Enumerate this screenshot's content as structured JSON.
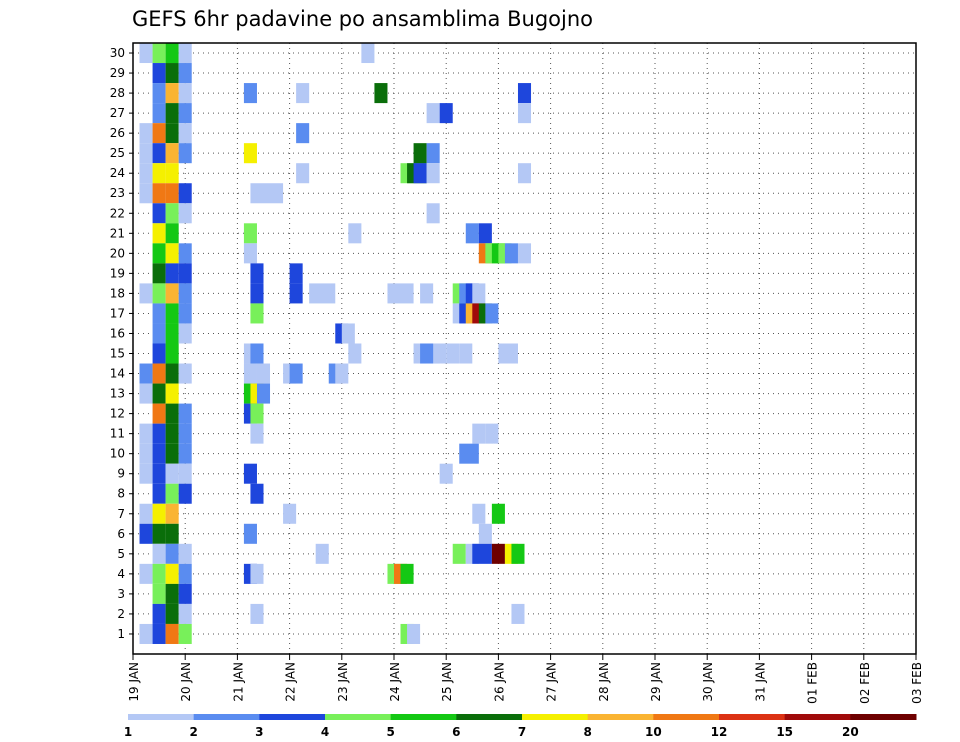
{
  "chart_data": {
    "type": "heatmap",
    "title": "GEFS 6hr padavine po ansamblima Bugojno",
    "members": [
      1,
      2,
      3,
      4,
      5,
      6,
      7,
      8,
      9,
      10,
      11,
      12,
      13,
      14,
      15,
      16,
      17,
      18,
      19,
      20,
      21,
      22,
      23,
      24,
      25,
      26,
      27,
      28,
      29,
      30
    ],
    "x_tick_labels": [
      "19 JAN",
      "20 JAN",
      "21 JAN",
      "22 JAN",
      "23 JAN",
      "24 JAN",
      "25 JAN",
      "26 JAN",
      "27 JAN",
      "28 JAN",
      "29 JAN",
      "30 JAN",
      "31 JAN",
      "01 FEB",
      "02 FEB",
      "03 FEB"
    ],
    "x_unit": "6-hour steps from 19 JAN 00 UTC",
    "colorbar": {
      "labels": [
        "1",
        "2",
        "3",
        "4",
        "5",
        "6",
        "7",
        "8",
        "10",
        "12",
        "15",
        "20"
      ],
      "colors": [
        "#b4c8f5",
        "#5a8cf0",
        "#1e46dc",
        "#78f05a",
        "#14c814",
        "#0a6e0a",
        "#f5f000",
        "#fab432",
        "#f07814",
        "#dc3214",
        "#a00a0a",
        "#6e0000"
      ]
    },
    "cells": [
      {
        "m": 30,
        "x": [
          1
        ],
        "b": 0
      },
      {
        "m": 30,
        "x": [
          2
        ],
        "b": 3
      },
      {
        "m": 30,
        "x": [
          3
        ],
        "b": 4
      },
      {
        "m": 30,
        "x": [
          4
        ],
        "b": 0
      },
      {
        "m": 30,
        "x": [
          18
        ],
        "b": 0
      },
      {
        "m": 29,
        "x": [
          2
        ],
        "b": 2
      },
      {
        "m": 29,
        "x": [
          3
        ],
        "b": 5
      },
      {
        "m": 29,
        "x": [
          4
        ],
        "b": 1
      },
      {
        "m": 28,
        "x": [
          2
        ],
        "b": 1
      },
      {
        "m": 28,
        "x": [
          3
        ],
        "b": 7
      },
      {
        "m": 28,
        "x": [
          4
        ],
        "b": 0
      },
      {
        "m": 28,
        "x": [
          9
        ],
        "b": 1
      },
      {
        "m": 28,
        "x": [
          13
        ],
        "b": 0
      },
      {
        "m": 28,
        "x": [
          19
        ],
        "b": 5
      },
      {
        "m": 28,
        "x": [
          30
        ],
        "b": 2
      },
      {
        "m": 27,
        "x": [
          2
        ],
        "b": 1
      },
      {
        "m": 27,
        "x": [
          3
        ],
        "b": 5
      },
      {
        "m": 27,
        "x": [
          4
        ],
        "b": 1
      },
      {
        "m": 27,
        "x": [
          23
        ],
        "b": 0
      },
      {
        "m": 27,
        "x": [
          24
        ],
        "b": 2
      },
      {
        "m": 27,
        "x": [
          30
        ],
        "b": 0
      },
      {
        "m": 26,
        "x": [
          1
        ],
        "b": 0
      },
      {
        "m": 26,
        "x": [
          2
        ],
        "b": 8
      },
      {
        "m": 26,
        "x": [
          3
        ],
        "b": 5
      },
      {
        "m": 26,
        "x": [
          4
        ],
        "b": 0
      },
      {
        "m": 26,
        "x": [
          13
        ],
        "b": 1
      },
      {
        "m": 25,
        "x": [
          1
        ],
        "b": 0
      },
      {
        "m": 25,
        "x": [
          2
        ],
        "b": 2
      },
      {
        "m": 25,
        "x": [
          3
        ],
        "b": 7
      },
      {
        "m": 25,
        "x": [
          4
        ],
        "b": 1
      },
      {
        "m": 25,
        "x": [
          9
        ],
        "b": 6
      },
      {
        "m": 25,
        "x": [
          22
        ],
        "b": 5
      },
      {
        "m": 25,
        "x": [
          23
        ],
        "b": 1
      },
      {
        "m": 24,
        "x": [
          1
        ],
        "b": 0
      },
      {
        "m": 24,
        "x": [
          2
        ],
        "b": 6
      },
      {
        "m": 24,
        "x": [
          3
        ],
        "b": 6
      },
      {
        "m": 24,
        "x": [
          13
        ],
        "b": 0
      },
      {
        "m": 24,
        "x": [
          21
        ],
        "b": 3
      },
      {
        "m": 24,
        "x": [
          21.5,
          22
        ],
        "b": 5
      },
      {
        "m": 24,
        "x": [
          22
        ],
        "b": 2
      },
      {
        "m": 24,
        "x": [
          23
        ],
        "b": 0
      },
      {
        "m": 24,
        "x": [
          30
        ],
        "b": 0
      },
      {
        "m": 23,
        "x": [
          1
        ],
        "b": 0
      },
      {
        "m": 23,
        "x": [
          2
        ],
        "b": 8
      },
      {
        "m": 23,
        "x": [
          3
        ],
        "b": 8
      },
      {
        "m": 23,
        "x": [
          4
        ],
        "b": 2
      },
      {
        "m": 23,
        "x": [
          9.5,
          11
        ],
        "b": 0
      },
      {
        "m": 22,
        "x": [
          2
        ],
        "b": 2
      },
      {
        "m": 22,
        "x": [
          3
        ],
        "b": 3
      },
      {
        "m": 22,
        "x": [
          4
        ],
        "b": 0
      },
      {
        "m": 22,
        "x": [
          23
        ],
        "b": 0
      },
      {
        "m": 21,
        "x": [
          2
        ],
        "b": 6
      },
      {
        "m": 21,
        "x": [
          3
        ],
        "b": 4
      },
      {
        "m": 21,
        "x": [
          9
        ],
        "b": 3
      },
      {
        "m": 21,
        "x": [
          17
        ],
        "b": 0
      },
      {
        "m": 21,
        "x": [
          26
        ],
        "b": 1
      },
      {
        "m": 21,
        "x": [
          27
        ],
        "b": 2
      },
      {
        "m": 20,
        "x": [
          2
        ],
        "b": 4
      },
      {
        "m": 20,
        "x": [
          3
        ],
        "b": 6
      },
      {
        "m": 20,
        "x": [
          4
        ],
        "b": 1
      },
      {
        "m": 20,
        "x": [
          9
        ],
        "b": 0
      },
      {
        "m": 20,
        "x": [
          27
        ],
        "b": 8
      },
      {
        "m": 20,
        "x": [
          27.5
        ],
        "b": 3
      },
      {
        "m": 20,
        "x": [
          28
        ],
        "b": 4
      },
      {
        "m": 20,
        "x": [
          28.5
        ],
        "b": 3
      },
      {
        "m": 20,
        "x": [
          29
        ],
        "b": 1
      },
      {
        "m": 20,
        "x": [
          30
        ],
        "b": 0
      },
      {
        "m": 19,
        "x": [
          2
        ],
        "b": 5
      },
      {
        "m": 19,
        "x": [
          3
        ],
        "b": 2
      },
      {
        "m": 19,
        "x": [
          4
        ],
        "b": 2
      },
      {
        "m": 19,
        "x": [
          9.5
        ],
        "b": 2
      },
      {
        "m": 19,
        "x": [
          12.5
        ],
        "b": 2
      },
      {
        "m": 18,
        "x": [
          1
        ],
        "b": 0
      },
      {
        "m": 18,
        "x": [
          2
        ],
        "b": 3
      },
      {
        "m": 18,
        "x": [
          3
        ],
        "b": 7
      },
      {
        "m": 18,
        "x": [
          4
        ],
        "b": 1
      },
      {
        "m": 18,
        "x": [
          9.5
        ],
        "b": 2
      },
      {
        "m": 18,
        "x": [
          12.5
        ],
        "b": 2
      },
      {
        "m": 18,
        "x": [
          14,
          15
        ],
        "b": 0
      },
      {
        "m": 18,
        "x": [
          20,
          21
        ],
        "b": 0
      },
      {
        "m": 18,
        "x": [
          22.5
        ],
        "b": 0
      },
      {
        "m": 18,
        "x": [
          25
        ],
        "b": 3
      },
      {
        "m": 18,
        "x": [
          25.5
        ],
        "b": 1
      },
      {
        "m": 18,
        "x": [
          26
        ],
        "b": 2
      },
      {
        "m": 18,
        "x": [
          26.5
        ],
        "b": 0
      },
      {
        "m": 17,
        "x": [
          2
        ],
        "b": 1
      },
      {
        "m": 17,
        "x": [
          3
        ],
        "b": 4
      },
      {
        "m": 17,
        "x": [
          4
        ],
        "b": 1
      },
      {
        "m": 17,
        "x": [
          9.5
        ],
        "b": 3
      },
      {
        "m": 17,
        "x": [
          25
        ],
        "b": 0
      },
      {
        "m": 17,
        "x": [
          25.5
        ],
        "b": 2
      },
      {
        "m": 17,
        "x": [
          26
        ],
        "b": 7
      },
      {
        "m": 17,
        "x": [
          26.5
        ],
        "b": 10
      },
      {
        "m": 17,
        "x": [
          27
        ],
        "b": 5
      },
      {
        "m": 17,
        "x": [
          27.5
        ],
        "b": 1
      },
      {
        "m": 16,
        "x": [
          2
        ],
        "b": 1
      },
      {
        "m": 16,
        "x": [
          3
        ],
        "b": 4
      },
      {
        "m": 16,
        "x": [
          4
        ],
        "b": 0
      },
      {
        "m": 16,
        "x": [
          16
        ],
        "b": 2
      },
      {
        "m": 16,
        "x": [
          16.5
        ],
        "b": 0
      },
      {
        "m": 15,
        "x": [
          2
        ],
        "b": 2
      },
      {
        "m": 15,
        "x": [
          3
        ],
        "b": 4
      },
      {
        "m": 15,
        "x": [
          9
        ],
        "b": 0
      },
      {
        "m": 15,
        "x": [
          9.5
        ],
        "b": 1
      },
      {
        "m": 15,
        "x": [
          17
        ],
        "b": 0
      },
      {
        "m": 15,
        "x": [
          22
        ],
        "b": 0
      },
      {
        "m": 15,
        "x": [
          22.5,
          23
        ],
        "b": 1
      },
      {
        "m": 15,
        "x": [
          23.5
        ],
        "b": 0
      },
      {
        "m": 15,
        "x": [
          24.5
        ],
        "b": 0
      },
      {
        "m": 15,
        "x": [
          25.5
        ],
        "b": 0
      },
      {
        "m": 15,
        "x": [
          28.5,
          29
        ],
        "b": 0
      },
      {
        "m": 14,
        "x": [
          1
        ],
        "b": 1
      },
      {
        "m": 14,
        "x": [
          2
        ],
        "b": 8
      },
      {
        "m": 14,
        "x": [
          3
        ],
        "b": 5
      },
      {
        "m": 14,
        "x": [
          4
        ],
        "b": 0
      },
      {
        "m": 14,
        "x": [
          9
        ],
        "b": 0
      },
      {
        "m": 14,
        "x": [
          10
        ],
        "b": 0
      },
      {
        "m": 14,
        "x": [
          12
        ],
        "b": 0
      },
      {
        "m": 14,
        "x": [
          12.5
        ],
        "b": 1
      },
      {
        "m": 14,
        "x": [
          15.5
        ],
        "b": 1
      },
      {
        "m": 14,
        "x": [
          16
        ],
        "b": 0
      },
      {
        "m": 13,
        "x": [
          1
        ],
        "b": 0
      },
      {
        "m": 13,
        "x": [
          2
        ],
        "b": 5
      },
      {
        "m": 13,
        "x": [
          3
        ],
        "b": 6
      },
      {
        "m": 13,
        "x": [
          9
        ],
        "b": 4
      },
      {
        "m": 13,
        "x": [
          9.5
        ],
        "b": 6
      },
      {
        "m": 13,
        "x": [
          10
        ],
        "b": 1
      },
      {
        "m": 12,
        "x": [
          2
        ],
        "b": 8
      },
      {
        "m": 12,
        "x": [
          3
        ],
        "b": 5
      },
      {
        "m": 12,
        "x": [
          4
        ],
        "b": 1
      },
      {
        "m": 12,
        "x": [
          9
        ],
        "b": 2
      },
      {
        "m": 12,
        "x": [
          9.5
        ],
        "b": 3
      },
      {
        "m": 11,
        "x": [
          1
        ],
        "b": 0
      },
      {
        "m": 11,
        "x": [
          2
        ],
        "b": 2
      },
      {
        "m": 11,
        "x": [
          3
        ],
        "b": 5
      },
      {
        "m": 11,
        "x": [
          4
        ],
        "b": 1
      },
      {
        "m": 11,
        "x": [
          9.5
        ],
        "b": 0
      },
      {
        "m": 11,
        "x": [
          26.5
        ],
        "b": 0
      },
      {
        "m": 11,
        "x": [
          27.5
        ],
        "b": 0
      },
      {
        "m": 10,
        "x": [
          1
        ],
        "b": 0
      },
      {
        "m": 10,
        "x": [
          2
        ],
        "b": 2
      },
      {
        "m": 10,
        "x": [
          3
        ],
        "b": 5
      },
      {
        "m": 10,
        "x": [
          4
        ],
        "b": 1
      },
      {
        "m": 10,
        "x": [
          25.5,
          26
        ],
        "b": 1
      },
      {
        "m": 9,
        "x": [
          1
        ],
        "b": 0
      },
      {
        "m": 9,
        "x": [
          2
        ],
        "b": 2
      },
      {
        "m": 9,
        "x": [
          3
        ],
        "b": 0
      },
      {
        "m": 9,
        "x": [
          4
        ],
        "b": 0
      },
      {
        "m": 9,
        "x": [
          9
        ],
        "b": 2
      },
      {
        "m": 9,
        "x": [
          24
        ],
        "b": 0
      },
      {
        "m": 8,
        "x": [
          2
        ],
        "b": 2
      },
      {
        "m": 8,
        "x": [
          3
        ],
        "b": 3
      },
      {
        "m": 8,
        "x": [
          4
        ],
        "b": 2
      },
      {
        "m": 8,
        "x": [
          9.5
        ],
        "b": 2
      },
      {
        "m": 7,
        "x": [
          1
        ],
        "b": 0
      },
      {
        "m": 7,
        "x": [
          2
        ],
        "b": 6
      },
      {
        "m": 7,
        "x": [
          3
        ],
        "b": 7
      },
      {
        "m": 7,
        "x": [
          12
        ],
        "b": 0
      },
      {
        "m": 7,
        "x": [
          26.5
        ],
        "b": 0
      },
      {
        "m": 7,
        "x": [
          28
        ],
        "b": 4
      },
      {
        "m": 6,
        "x": [
          1
        ],
        "b": 2
      },
      {
        "m": 6,
        "x": [
          2
        ],
        "b": 5
      },
      {
        "m": 6,
        "x": [
          3
        ],
        "b": 5
      },
      {
        "m": 6,
        "x": [
          9
        ],
        "b": 1
      },
      {
        "m": 6,
        "x": [
          27
        ],
        "b": 0
      },
      {
        "m": 5,
        "x": [
          2
        ],
        "b": 0
      },
      {
        "m": 5,
        "x": [
          3
        ],
        "b": 1
      },
      {
        "m": 5,
        "x": [
          4
        ],
        "b": 0
      },
      {
        "m": 5,
        "x": [
          14.5
        ],
        "b": 0
      },
      {
        "m": 5,
        "x": [
          25
        ],
        "b": 3
      },
      {
        "m": 5,
        "x": [
          26
        ],
        "b": 0
      },
      {
        "m": 5,
        "x": [
          26.5,
          27
        ],
        "b": 2
      },
      {
        "m": 5,
        "x": [
          28
        ],
        "b": 11
      },
      {
        "m": 5,
        "x": [
          29
        ],
        "b": 6
      },
      {
        "m": 5,
        "x": [
          29.5
        ],
        "b": 4
      },
      {
        "m": 4,
        "x": [
          1
        ],
        "b": 0
      },
      {
        "m": 4,
        "x": [
          2
        ],
        "b": 3
      },
      {
        "m": 4,
        "x": [
          3
        ],
        "b": 6
      },
      {
        "m": 4,
        "x": [
          4
        ],
        "b": 1
      },
      {
        "m": 4,
        "x": [
          9
        ],
        "b": 2
      },
      {
        "m": 4,
        "x": [
          9.5
        ],
        "b": 0
      },
      {
        "m": 4,
        "x": [
          20
        ],
        "b": 3
      },
      {
        "m": 4,
        "x": [
          20.5
        ],
        "b": 8
      },
      {
        "m": 4,
        "x": [
          21
        ],
        "b": 4
      },
      {
        "m": 3,
        "x": [
          2
        ],
        "b": 3
      },
      {
        "m": 3,
        "x": [
          3
        ],
        "b": 5
      },
      {
        "m": 3,
        "x": [
          4
        ],
        "b": 2
      },
      {
        "m": 2,
        "x": [
          2
        ],
        "b": 2
      },
      {
        "m": 2,
        "x": [
          3
        ],
        "b": 5
      },
      {
        "m": 2,
        "x": [
          4
        ],
        "b": 0
      },
      {
        "m": 2,
        "x": [
          9.5
        ],
        "b": 0
      },
      {
        "m": 2,
        "x": [
          29.5
        ],
        "b": 0
      },
      {
        "m": 1,
        "x": [
          1
        ],
        "b": 0
      },
      {
        "m": 1,
        "x": [
          2
        ],
        "b": 2
      },
      {
        "m": 1,
        "x": [
          3
        ],
        "b": 8
      },
      {
        "m": 1,
        "x": [
          4
        ],
        "b": 3
      },
      {
        "m": 1,
        "x": [
          21
        ],
        "b": 3
      },
      {
        "m": 1,
        "x": [
          21.5
        ],
        "b": 0
      }
    ]
  }
}
